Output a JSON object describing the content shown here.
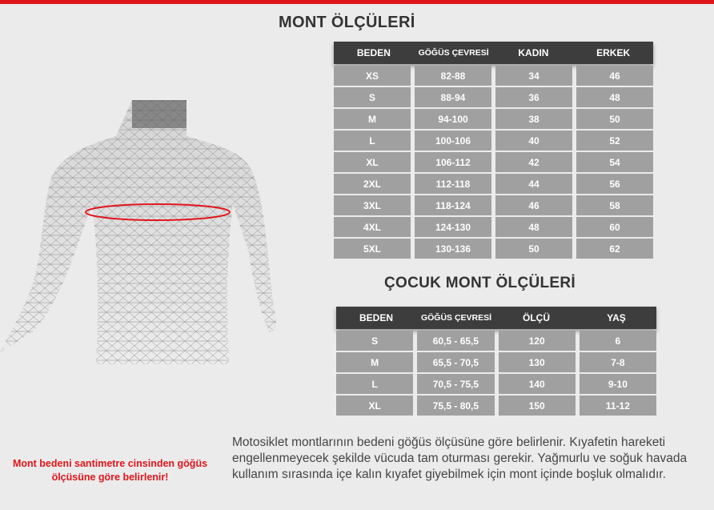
{
  "title": "MONT ÖLÇÜLERİ",
  "adult_table": {
    "headers": [
      "BEDEN",
      "GÖĞÜS ÇEVRESİ",
      "KADIN",
      "ERKEK"
    ],
    "rows": [
      [
        "XS",
        "82-88",
        "34",
        "46"
      ],
      [
        "S",
        "88-94",
        "36",
        "48"
      ],
      [
        "M",
        "94-100",
        "38",
        "50"
      ],
      [
        "L",
        "100-106",
        "40",
        "52"
      ],
      [
        "XL",
        "106-112",
        "42",
        "54"
      ],
      [
        "2XL",
        "112-118",
        "44",
        "56"
      ],
      [
        "3XL",
        "118-124",
        "46",
        "58"
      ],
      [
        "4XL",
        "124-130",
        "48",
        "60"
      ],
      [
        "5XL",
        "130-136",
        "50",
        "62"
      ]
    ]
  },
  "child_title": "ÇOCUK MONT ÖLÇÜLERİ",
  "child_table": {
    "headers": [
      "BEDEN",
      "GÖĞÜS ÇEVRESİ",
      "ÖLÇÜ",
      "YAŞ"
    ],
    "rows": [
      [
        "S",
        "60,5 - 65,5",
        "120",
        "6"
      ],
      [
        "M",
        "65,5 - 70,5",
        "130",
        "7-8"
      ],
      [
        "L",
        "70,5 - 75,5",
        "140",
        "9-10"
      ],
      [
        "XL",
        "75,5 - 80,5",
        "150",
        "11-12"
      ]
    ]
  },
  "note_red": "Mont bedeni santimetre cinsinden göğüs ölçüsüne göre belirlenir!",
  "description": "Motosiklet montlarının bedeni göğüs ölçüsüne göre belirlenir. Kıyafetin hareketi engellenmeyecek şekilde vücuda tam oturması gerekir. Yağmurlu ve soğuk havada kullanım sırasında içe kalın kıyafet giyebilmek için mont içinde boşluk olmalıdır.",
  "colors": {
    "accent": "#e2141b",
    "header": "#3d3d3d",
    "cell": "#a0a0a0"
  }
}
